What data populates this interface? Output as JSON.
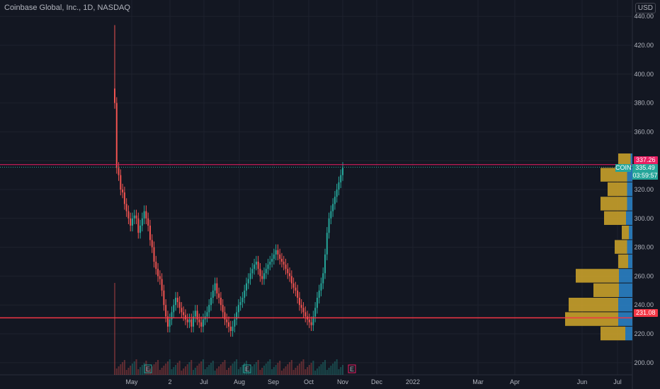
{
  "header": {
    "title": "Coinbase Global, Inc., 1D, NASDAQ",
    "currency": "USD"
  },
  "price_tags": {
    "resistance_label": "337.26",
    "support_label": "231.08",
    "symbol": "COIN",
    "last_price": "335.49",
    "countdown": "03:59:57"
  },
  "colors": {
    "background": "#131722",
    "up": "#26a69a",
    "down": "#ef5350",
    "support_line": "#f23645",
    "resistance_line": "#e91e63",
    "vp_up": "#2a7fc3",
    "vp_down": "#c8a02a"
  },
  "chart_data": {
    "type": "candlestick",
    "title": "Coinbase Global, Inc., 1D, NASDAQ",
    "ylim": [
      195,
      445
    ],
    "y_ticks": [
      440,
      420,
      400,
      380,
      360,
      340,
      320,
      300,
      280,
      260,
      240,
      220,
      200
    ],
    "x_ticks": [
      "May",
      "2",
      "Jul",
      "Aug",
      "Sep",
      "Oct",
      "Nov",
      "Dec",
      "2022",
      "Mar",
      "Apr",
      "Jun",
      "Jul"
    ],
    "horizontal_lines": [
      {
        "label": "337.26",
        "value": 337.26
      },
      {
        "label": "231.08",
        "value": 231.08
      }
    ],
    "last_price": 335.49,
    "earnings_markers": [
      "E",
      "E",
      "E"
    ],
    "candles_close": [
      380,
      335,
      330,
      320,
      318,
      310,
      305,
      300,
      295,
      300,
      302,
      300,
      290,
      295,
      300,
      305,
      300,
      295,
      285,
      280,
      270,
      265,
      260,
      258,
      250,
      240,
      232,
      225,
      230,
      235,
      240,
      245,
      242,
      238,
      235,
      233,
      230,
      228,
      230,
      225,
      232,
      236,
      230,
      228,
      225,
      230,
      232,
      235,
      240,
      245,
      250,
      255,
      248,
      245,
      240,
      235,
      230,
      228,
      225,
      222,
      225,
      230,
      235,
      240,
      242,
      245,
      250,
      255,
      258,
      262,
      265,
      268,
      270,
      265,
      260,
      258,
      262,
      265,
      268,
      270,
      272,
      275,
      278,
      275,
      272,
      270,
      268,
      265,
      262,
      260,
      255,
      252,
      250,
      245,
      240,
      238,
      235,
      232,
      230,
      228,
      226,
      232,
      238,
      245,
      250,
      255,
      262,
      275,
      290,
      300,
      305,
      310,
      315,
      320,
      325,
      330,
      335
    ],
    "volume_profile": [
      {
        "price_low": 215,
        "price_high": 225,
        "up": 0.2,
        "down": 0.45
      },
      {
        "price_low": 225,
        "price_high": 235,
        "up": 0.4,
        "down": 0.95
      },
      {
        "price_low": 235,
        "price_high": 245,
        "up": 0.4,
        "down": 0.9
      },
      {
        "price_low": 245,
        "price_high": 255,
        "up": 0.38,
        "down": 0.55
      },
      {
        "price_low": 255,
        "price_high": 265,
        "up": 0.38,
        "down": 0.8
      },
      {
        "price_low": 265,
        "price_high": 275,
        "up": 0.12,
        "down": 0.2
      },
      {
        "price_low": 275,
        "price_high": 285,
        "up": 0.15,
        "down": 0.25
      },
      {
        "price_low": 285,
        "price_high": 295,
        "up": 0.1,
        "down": 0.15
      },
      {
        "price_low": 295,
        "price_high": 305,
        "up": 0.18,
        "down": 0.4
      },
      {
        "price_low": 305,
        "price_high": 315,
        "up": 0.15,
        "down": 0.45
      },
      {
        "price_low": 315,
        "price_high": 325,
        "up": 0.15,
        "down": 0.35
      },
      {
        "price_low": 325,
        "price_high": 335,
        "up": 0.15,
        "down": 0.45
      },
      {
        "price_low": 335,
        "price_high": 345,
        "up": 0.05,
        "down": 0.2
      }
    ]
  }
}
